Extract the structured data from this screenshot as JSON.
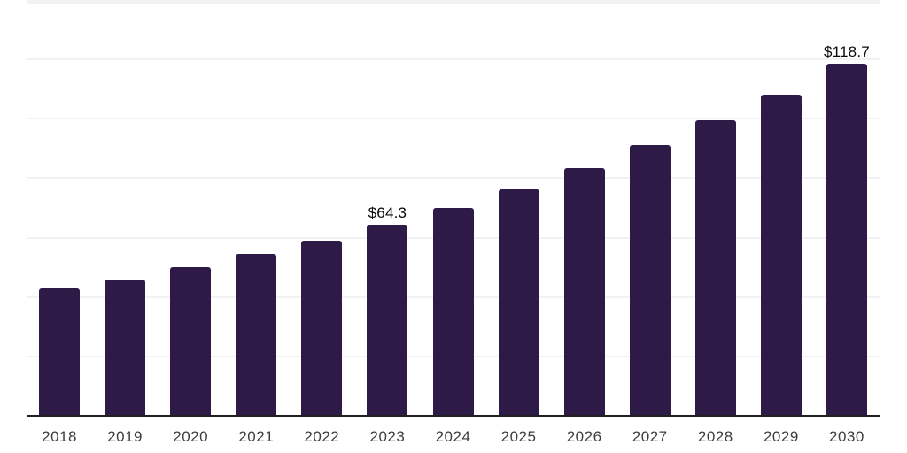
{
  "chart_data": {
    "type": "bar",
    "title": "",
    "xlabel": "",
    "ylabel": "",
    "categories": [
      "2018",
      "2019",
      "2020",
      "2021",
      "2022",
      "2023",
      "2024",
      "2025",
      "2026",
      "2027",
      "2028",
      "2029",
      "2030"
    ],
    "values": [
      42.9,
      45.9,
      49.9,
      54.5,
      59.0,
      64.3,
      70.1,
      76.4,
      83.4,
      91.2,
      99.4,
      108.2,
      118.7
    ],
    "data_labels": {
      "2023": "$64.3",
      "2030": "$118.7"
    },
    "ylim": [
      0,
      140
    ],
    "gridline_interval": 20,
    "grid": true,
    "legend": false,
    "colors": {
      "bar": "#2E1A47",
      "axis_line": "#1f1f1f",
      "gridline": "#f2f2f5",
      "tick_label": "#3d3d3d",
      "value_label": "#0a0a0a",
      "background": "#ffffff"
    }
  }
}
